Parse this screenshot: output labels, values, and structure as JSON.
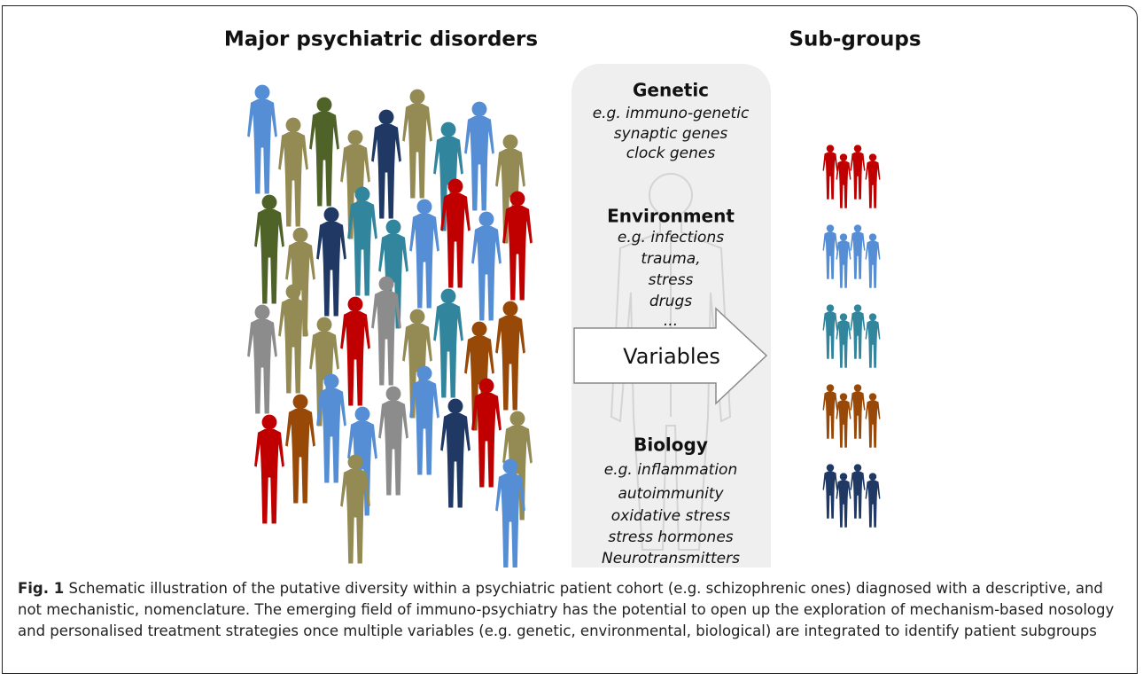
{
  "figure": {
    "left_title": "Major psychiatric disorders",
    "right_title": "Sub-groups",
    "panel": {
      "sections": [
        {
          "heading": "Genetic",
          "items": [
            "e.g. immuno-genetic",
            "synaptic genes",
            "clock genes"
          ]
        },
        {
          "heading": "Environment",
          "items": [
            "e.g. infections",
            "trauma,",
            "stress",
            "drugs",
            "..."
          ]
        },
        {
          "heading": "Biology",
          "items": [
            "e.g. inflammation",
            "autoimmunity",
            "oxidative stress",
            "stress hormones",
            "Neurotransmitters"
          ]
        }
      ],
      "arrow_label": "Variables"
    }
  },
  "caption": {
    "label": "Fig. 1",
    "text": "Schematic illustration of the putative diversity within a psychiatric patient cohort (e.g. schizophrenic ones) diagnosed with a descriptive, and not mechanistic, nomenclature. The emerging field of immuno-psychiatry has the potential to open up the exploration of mechanism-based nosology and personalised treatment strategies once multiple variables (e.g. genetic, environmental, biological) are integrated to identify patient subgroups"
  }
}
